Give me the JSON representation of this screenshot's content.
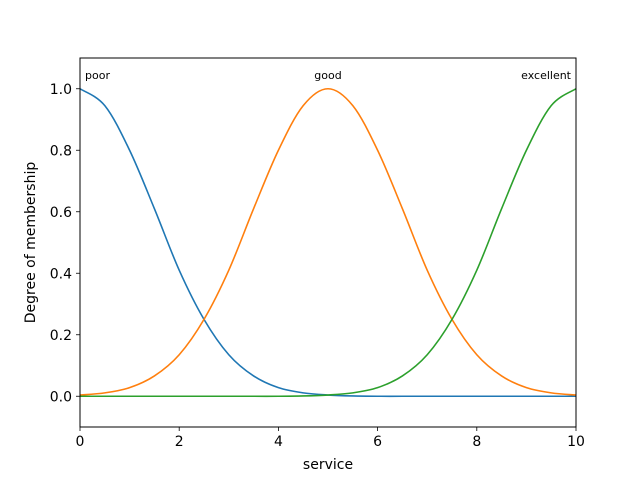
{
  "chart_data": {
    "type": "line",
    "xlabel": "service",
    "ylabel": "Degree of membership",
    "xlim": [
      0,
      10
    ],
    "ylim": [
      -0.1,
      1.1
    ],
    "xticks": [
      0,
      2,
      4,
      6,
      8,
      10
    ],
    "yticks": [
      0.0,
      0.2,
      0.4,
      0.6,
      0.8,
      1.0
    ],
    "xtick_labels": [
      "0",
      "2",
      "4",
      "6",
      "8",
      "10"
    ],
    "ytick_labels": [
      "0.0",
      "0.2",
      "0.4",
      "0.6",
      "0.8",
      "1.0"
    ],
    "grid": false,
    "x": [
      0,
      0.5,
      1,
      1.5,
      2,
      2.5,
      3,
      3.5,
      4,
      4.5,
      5,
      5.5,
      6,
      6.5,
      7,
      7.5,
      8,
      8.5,
      9,
      9.5,
      10
    ],
    "series": [
      {
        "name": "poor",
        "color": "#1f77b4",
        "values": [
          1.0,
          0.945,
          0.8,
          0.61,
          0.41,
          0.25,
          0.135,
          0.066,
          0.028,
          0.011,
          0.004,
          0.001,
          0.0,
          0.0,
          0.0,
          0.0,
          0.0,
          0.0,
          0.0,
          0.0,
          0.0
        ]
      },
      {
        "name": "good",
        "color": "#ff7f0e",
        "values": [
          0.004,
          0.011,
          0.028,
          0.066,
          0.135,
          0.25,
          0.41,
          0.61,
          0.8,
          0.945,
          1.0,
          0.945,
          0.8,
          0.61,
          0.41,
          0.25,
          0.135,
          0.066,
          0.028,
          0.011,
          0.004
        ]
      },
      {
        "name": "excellent",
        "color": "#2ca02c",
        "values": [
          0.0,
          0.0,
          0.0,
          0.0,
          0.0,
          0.0,
          0.0,
          0.0,
          0.0,
          0.001,
          0.004,
          0.011,
          0.028,
          0.066,
          0.135,
          0.25,
          0.41,
          0.61,
          0.8,
          0.945,
          1.0
        ]
      }
    ],
    "annotations": [
      {
        "text": "poor",
        "x": 0,
        "y": 1.0
      },
      {
        "text": "good",
        "x": 5,
        "y": 1.0
      },
      {
        "text": "excellent",
        "x": 10,
        "y": 1.0
      }
    ]
  }
}
